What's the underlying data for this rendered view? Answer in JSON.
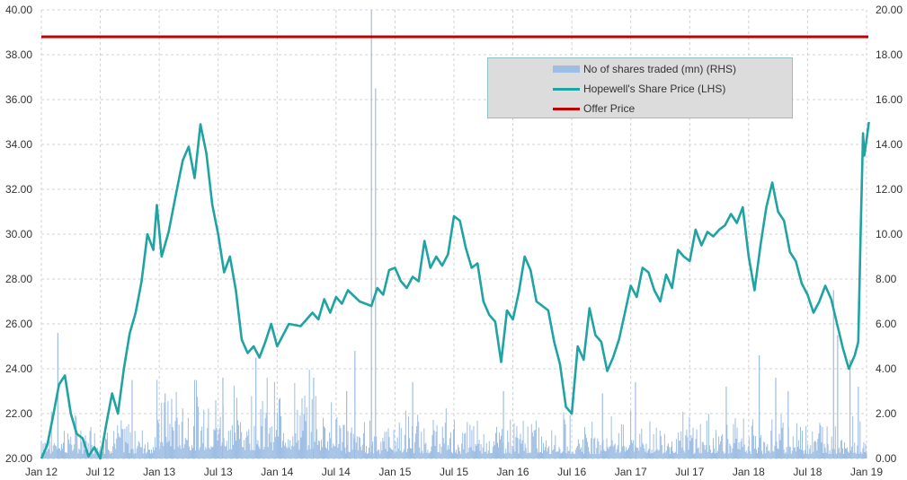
{
  "chart_data": {
    "type": "bar+line",
    "x_tick_labels": [
      "Jan 12",
      "Jul 12",
      "Jan 13",
      "Jul 13",
      "Jan 14",
      "Jul 14",
      "Jan 15",
      "Jul 15",
      "Jan 16",
      "Jul 16",
      "Jan 17",
      "Jul 17",
      "Jan 18",
      "Jul 18",
      "Jan 19"
    ],
    "y_left": {
      "min": 20,
      "max": 40,
      "step": 2,
      "tick_labels": [
        "20.00",
        "22.00",
        "24.00",
        "26.00",
        "28.00",
        "30.00",
        "32.00",
        "34.00",
        "36.00",
        "38.00",
        "40.00"
      ]
    },
    "y_right": {
      "min": 0,
      "max": 20,
      "step": 2,
      "tick_labels": [
        "0.00",
        "2.00",
        "4.00",
        "6.00",
        "8.00",
        "10.00",
        "12.00",
        "14.00",
        "16.00",
        "18.00",
        "20.00"
      ]
    },
    "grid": true,
    "legend_position": "top-right",
    "series": [
      {
        "name": "No of shares traded (mn) (RHS)",
        "type": "bar",
        "axis": "right",
        "color": "#9dbde3",
        "typical_level": 0.8,
        "spikes": [
          [
            0.02,
            5.6
          ],
          [
            0.11,
            3.5
          ],
          [
            0.15,
            2.9
          ],
          [
            0.22,
            3.6
          ],
          [
            0.26,
            4.5
          ],
          [
            0.33,
            3.6
          ],
          [
            0.37,
            3.0
          ],
          [
            0.38,
            4.8
          ],
          [
            0.4,
            20.0
          ],
          [
            0.405,
            16.5
          ],
          [
            0.45,
            3.4
          ],
          [
            0.56,
            3.0
          ],
          [
            0.68,
            2.9
          ],
          [
            0.72,
            3.4
          ],
          [
            0.83,
            3.2
          ],
          [
            0.87,
            4.6
          ],
          [
            0.89,
            3.6
          ],
          [
            0.905,
            3.0
          ],
          [
            0.96,
            7.5
          ],
          [
            0.965,
            5.5
          ],
          [
            0.98,
            4.4
          ],
          [
            0.99,
            3.2
          ]
        ]
      },
      {
        "name": "Hopewell's Share Price (LHS)",
        "type": "line",
        "axis": "left",
        "color": "#1fa3a3",
        "points": [
          [
            2012.0,
            20.0
          ],
          [
            2012.05,
            20.6
          ],
          [
            2012.1,
            21.9
          ],
          [
            2012.15,
            23.3
          ],
          [
            2012.2,
            23.7
          ],
          [
            2012.25,
            22.0
          ],
          [
            2012.3,
            21.1
          ],
          [
            2012.35,
            20.9
          ],
          [
            2012.4,
            20.1
          ],
          [
            2012.45,
            20.5
          ],
          [
            2012.5,
            20.0
          ],
          [
            2012.55,
            21.5
          ],
          [
            2012.6,
            22.9
          ],
          [
            2012.65,
            22.0
          ],
          [
            2012.7,
            24.0
          ],
          [
            2012.75,
            25.6
          ],
          [
            2012.8,
            26.5
          ],
          [
            2012.85,
            27.9
          ],
          [
            2012.9,
            30.0
          ],
          [
            2012.95,
            29.3
          ],
          [
            2012.98,
            31.3
          ],
          [
            2013.02,
            29.0
          ],
          [
            2013.08,
            30.1
          ],
          [
            2013.15,
            32.0
          ],
          [
            2013.2,
            33.3
          ],
          [
            2013.25,
            33.9
          ],
          [
            2013.3,
            32.5
          ],
          [
            2013.35,
            34.9
          ],
          [
            2013.4,
            33.6
          ],
          [
            2013.45,
            31.3
          ],
          [
            2013.5,
            30.0
          ],
          [
            2013.55,
            28.3
          ],
          [
            2013.6,
            29.0
          ],
          [
            2013.65,
            27.5
          ],
          [
            2013.7,
            25.3
          ],
          [
            2013.75,
            24.7
          ],
          [
            2013.8,
            25.0
          ],
          [
            2013.85,
            24.5
          ],
          [
            2013.9,
            25.2
          ],
          [
            2013.95,
            26.0
          ],
          [
            2014.0,
            25.0
          ],
          [
            2014.1,
            26.0
          ],
          [
            2014.2,
            25.9
          ],
          [
            2014.3,
            26.5
          ],
          [
            2014.35,
            26.2
          ],
          [
            2014.4,
            27.1
          ],
          [
            2014.45,
            26.5
          ],
          [
            2014.5,
            27.2
          ],
          [
            2014.55,
            26.9
          ],
          [
            2014.6,
            27.5
          ],
          [
            2014.7,
            27.0
          ],
          [
            2014.8,
            26.8
          ],
          [
            2014.85,
            27.6
          ],
          [
            2014.9,
            27.3
          ],
          [
            2014.95,
            28.4
          ],
          [
            2015.0,
            28.5
          ],
          [
            2015.05,
            27.9
          ],
          [
            2015.1,
            27.6
          ],
          [
            2015.15,
            28.1
          ],
          [
            2015.2,
            27.9
          ],
          [
            2015.25,
            29.7
          ],
          [
            2015.3,
            28.5
          ],
          [
            2015.35,
            29.0
          ],
          [
            2015.4,
            28.6
          ],
          [
            2015.45,
            29.1
          ],
          [
            2015.5,
            30.8
          ],
          [
            2015.55,
            30.6
          ],
          [
            2015.6,
            29.4
          ],
          [
            2015.65,
            28.5
          ],
          [
            2015.7,
            28.7
          ],
          [
            2015.75,
            27.0
          ],
          [
            2015.8,
            26.4
          ],
          [
            2015.85,
            26.1
          ],
          [
            2015.9,
            24.3
          ],
          [
            2015.95,
            26.6
          ],
          [
            2016.0,
            26.2
          ],
          [
            2016.05,
            27.4
          ],
          [
            2016.1,
            29.0
          ],
          [
            2016.15,
            28.4
          ],
          [
            2016.2,
            27.0
          ],
          [
            2016.3,
            26.6
          ],
          [
            2016.35,
            25.2
          ],
          [
            2016.4,
            24.2
          ],
          [
            2016.45,
            22.3
          ],
          [
            2016.5,
            22.0
          ],
          [
            2016.55,
            25.0
          ],
          [
            2016.6,
            24.4
          ],
          [
            2016.65,
            26.7
          ],
          [
            2016.7,
            25.5
          ],
          [
            2016.75,
            25.2
          ],
          [
            2016.8,
            23.9
          ],
          [
            2016.85,
            24.5
          ],
          [
            2016.9,
            25.3
          ],
          [
            2016.95,
            26.5
          ],
          [
            2017.0,
            27.7
          ],
          [
            2017.05,
            27.2
          ],
          [
            2017.1,
            28.5
          ],
          [
            2017.15,
            28.3
          ],
          [
            2017.2,
            27.5
          ],
          [
            2017.25,
            27.0
          ],
          [
            2017.3,
            28.2
          ],
          [
            2017.35,
            27.6
          ],
          [
            2017.4,
            29.3
          ],
          [
            2017.45,
            29.0
          ],
          [
            2017.5,
            28.8
          ],
          [
            2017.55,
            30.2
          ],
          [
            2017.6,
            29.5
          ],
          [
            2017.65,
            30.1
          ],
          [
            2017.7,
            29.9
          ],
          [
            2017.75,
            30.2
          ],
          [
            2017.8,
            30.4
          ],
          [
            2017.85,
            30.9
          ],
          [
            2017.9,
            30.5
          ],
          [
            2017.95,
            31.2
          ],
          [
            2018.0,
            29.0
          ],
          [
            2018.05,
            27.5
          ],
          [
            2018.1,
            29.5
          ],
          [
            2018.15,
            31.2
          ],
          [
            2018.2,
            32.3
          ],
          [
            2018.25,
            31.0
          ],
          [
            2018.3,
            30.6
          ],
          [
            2018.35,
            29.2
          ],
          [
            2018.4,
            28.8
          ],
          [
            2018.45,
            27.8
          ],
          [
            2018.5,
            27.3
          ],
          [
            2018.55,
            26.5
          ],
          [
            2018.6,
            27.0
          ],
          [
            2018.65,
            27.7
          ],
          [
            2018.7,
            27.1
          ],
          [
            2018.75,
            26.0
          ],
          [
            2018.8,
            24.9
          ],
          [
            2018.85,
            24.0
          ],
          [
            2018.9,
            24.6
          ],
          [
            2018.93,
            25.2
          ],
          [
            2018.95,
            30.0
          ],
          [
            2018.97,
            34.5
          ],
          [
            2018.98,
            33.5
          ],
          [
            2019.0,
            34.2
          ],
          [
            2019.02,
            35.0
          ]
        ]
      },
      {
        "name": "Offer Price",
        "type": "line",
        "axis": "left",
        "color": "#c00000",
        "value": 38.8
      }
    ]
  }
}
